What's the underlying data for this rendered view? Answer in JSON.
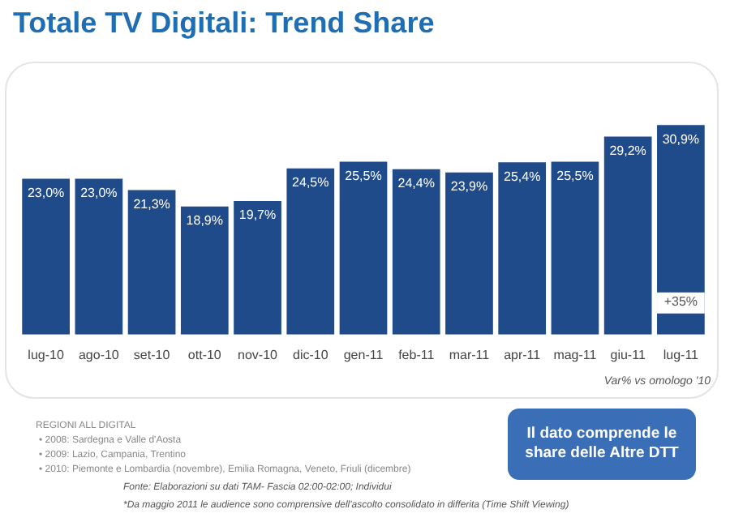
{
  "chart_data": {
    "type": "bar",
    "title": "Totale TV Digitali: Trend Share",
    "categories": [
      "lug-10",
      "ago-10",
      "set-10",
      "ott-10",
      "nov-10",
      "dic-10",
      "gen-11",
      "feb-11",
      "mar-11",
      "apr-11",
      "mag-11",
      "giu-11",
      "lug-11"
    ],
    "values": [
      23.0,
      23.0,
      21.3,
      18.9,
      19.7,
      24.5,
      25.5,
      24.4,
      23.9,
      25.4,
      25.5,
      29.2,
      30.9
    ],
    "value_labels": [
      "23,0%",
      "23,0%",
      "21,3%",
      "18,9%",
      "19,7%",
      "24,5%",
      "25,5%",
      "24,4%",
      "23,9%",
      "25,4%",
      "25,5%",
      "29,2%",
      "30,9%"
    ],
    "color": "#1f4b8a",
    "grid": false,
    "legend": false,
    "tick_labels": "x",
    "annotations": [
      {
        "text": "+35%",
        "x": "lug-11"
      },
      "Var% vs omologo '10",
      "Il dato comprende le share delle Altre DTT",
      "REGIONI ALL DIGITAL",
      "• 2008: Sardegna e Valle d'Aosta",
      "• 2009: Lazio, Campania, Trentino",
      "• 2010: Piemonte e Lombardia (novembre), Emilia Romagna, Veneto, Friuli (dicembre)",
      "Fonte: Elaborazioni su dati TAM- Fascia 02:00-02:00; Individui",
      "*Da maggio 2011 le audience sono comprensive dell'ascolto consolidato in differita (Time Shift Viewing)"
    ]
  }
}
